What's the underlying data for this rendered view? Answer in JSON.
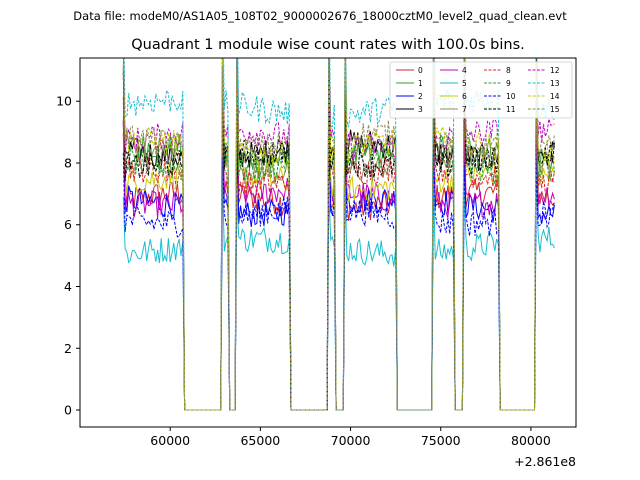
{
  "figure": {
    "suptitle": "Data file: modeM0/AS1A05_108T02_9000002676_18000cztM0_level2_quad_clean.evt"
  },
  "chart_data": {
    "type": "line",
    "title": "Quadrant 1 module wise count rates with 100.0s bins.",
    "xlabel": "",
    "ylabel": "",
    "x_offset_label": "+2.861e8",
    "xlim": [
      55000,
      82500
    ],
    "ylim": [
      -0.55,
      11.4
    ],
    "xticks": [
      60000,
      65000,
      70000,
      75000,
      80000
    ],
    "xtick_labels": [
      "60000",
      "65000",
      "70000",
      "75000",
      "80000"
    ],
    "yticks": [
      0,
      2,
      4,
      6,
      8,
      10
    ],
    "ytick_labels": [
      "0",
      "2",
      "4",
      "6",
      "8",
      "10"
    ],
    "legend_location": "top-right",
    "legend_columns": 4,
    "bin_size": 100,
    "segments": [
      [
        57400,
        60700
      ],
      [
        62900,
        63200
      ],
      [
        63700,
        66600
      ],
      [
        68800,
        69100
      ],
      [
        69700,
        72500
      ],
      [
        74600,
        75700
      ],
      [
        76300,
        78200
      ],
      [
        80300,
        81300
      ]
    ],
    "series": [
      {
        "name": "0",
        "color": "#d62728",
        "dash": "solid",
        "level": 6.8
      },
      {
        "name": "1",
        "color": "#2ca02c",
        "dash": "solid",
        "level": 8.3
      },
      {
        "name": "2",
        "color": "#0000ff",
        "dash": "solid",
        "level": 6.6
      },
      {
        "name": "3",
        "color": "#000000",
        "dash": "solid",
        "level": 8.4
      },
      {
        "name": "4",
        "color": "#c000c0",
        "dash": "solid",
        "level": 6.9
      },
      {
        "name": "5",
        "color": "#17becf",
        "dash": "solid",
        "level": 5.3
      },
      {
        "name": "6",
        "color": "#c8c800",
        "dash": "solid",
        "level": 7.4
      },
      {
        "name": "7",
        "color": "#8c8c5a",
        "dash": "solid",
        "level": 7.9
      },
      {
        "name": "8",
        "color": "#d62728",
        "dash": "dashed",
        "level": 7.6
      },
      {
        "name": "9",
        "color": "#2ca02c",
        "dash": "dashed",
        "level": 8.0
      },
      {
        "name": "10",
        "color": "#0000ff",
        "dash": "dashed",
        "level": 6.3
      },
      {
        "name": "11",
        "color": "#000000",
        "dash": "dashed",
        "level": 8.1
      },
      {
        "name": "12",
        "color": "#c000c0",
        "dash": "dashed",
        "level": 8.8
      },
      {
        "name": "13",
        "color": "#17becf",
        "dash": "dashed",
        "level": 9.8
      },
      {
        "name": "14",
        "color": "#c8c800",
        "dash": "dashed",
        "level": 8.5
      },
      {
        "name": "15",
        "color": "#8c8c5a",
        "dash": "dashed",
        "level": 8.7
      }
    ]
  }
}
